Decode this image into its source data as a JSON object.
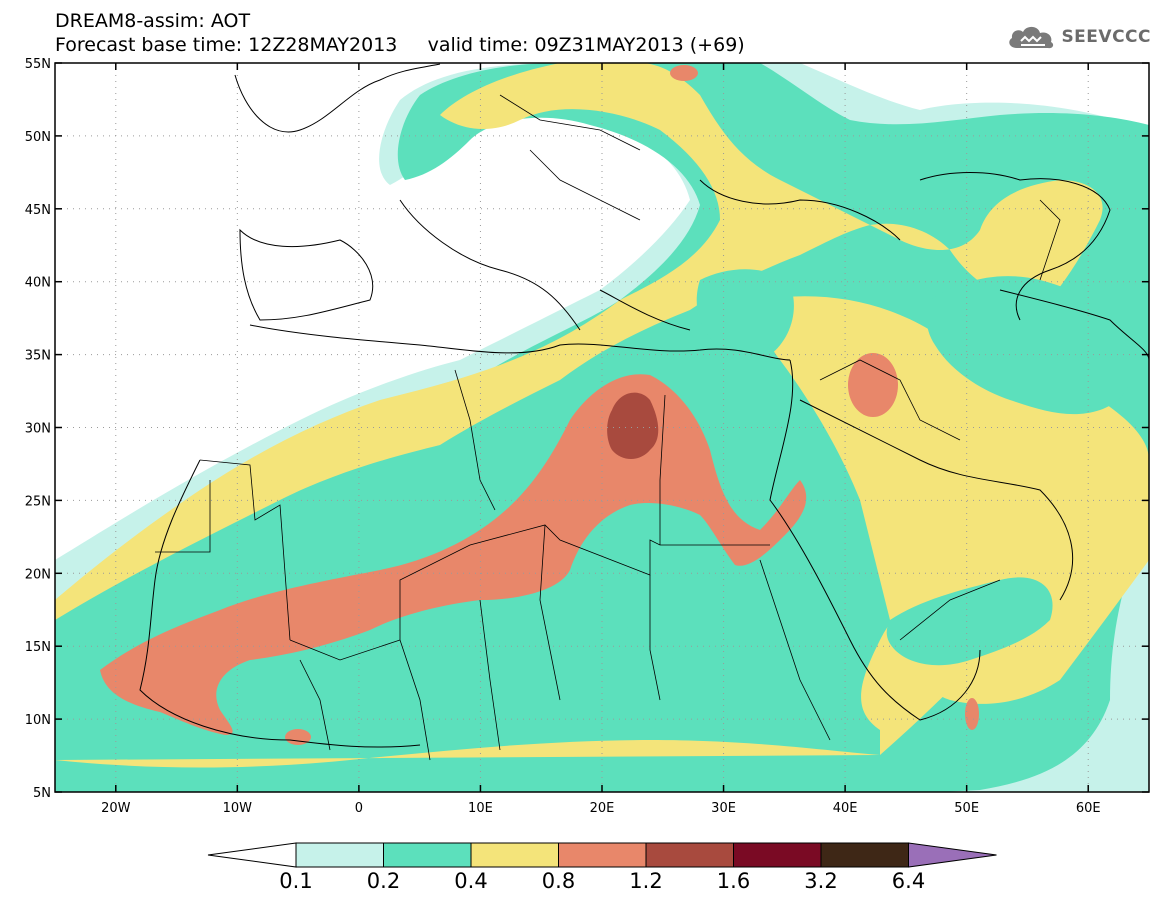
{
  "header": {
    "line1": "DREAM8-assim: AOT",
    "line2": "Forecast base time: 12Z28MAY2013     valid time: 09Z31MAY2013 (+69)"
  },
  "logo": {
    "text": "SEEVCCC",
    "icon": "cloud-icon"
  },
  "map": {
    "title": "DREAM8-assim: AOT",
    "lon_range": [
      -25,
      65
    ],
    "lat_range": [
      5,
      55
    ],
    "lat_ticks": [
      {
        "value": 55,
        "label": "55N"
      },
      {
        "value": 50,
        "label": "50N"
      },
      {
        "value": 45,
        "label": "45N"
      },
      {
        "value": 40,
        "label": "40N"
      },
      {
        "value": 35,
        "label": "35N"
      },
      {
        "value": 30,
        "label": "30N"
      },
      {
        "value": 25,
        "label": "25N"
      },
      {
        "value": 20,
        "label": "20N"
      },
      {
        "value": 15,
        "label": "15N"
      },
      {
        "value": 10,
        "label": "10N"
      },
      {
        "value": 5,
        "label": "5N"
      }
    ],
    "lon_ticks": [
      {
        "value": -20,
        "label": "20W"
      },
      {
        "value": -10,
        "label": "10W"
      },
      {
        "value": 0,
        "label": "0"
      },
      {
        "value": 10,
        "label": "10E"
      },
      {
        "value": 20,
        "label": "20E"
      },
      {
        "value": 30,
        "label": "30E"
      },
      {
        "value": 40,
        "label": "40E"
      },
      {
        "value": 50,
        "label": "50E"
      },
      {
        "value": 60,
        "label": "60E"
      }
    ],
    "grid": true,
    "colors": {
      "c01": "#c6f2ea",
      "c02": "#5ce0bc",
      "c04": "#f4e47a",
      "c08": "#e8876a",
      "c12": "#a84a3e",
      "c16": "#7a0a24",
      "c32": "#3e2716",
      "c64": "#9a6fb8"
    }
  },
  "colorbar": {
    "labels": [
      "0.1",
      "0.2",
      "0.4",
      "0.8",
      "1.2",
      "1.6",
      "3.2",
      "6.4"
    ],
    "bins": [
      {
        "color": "#c6f2ea"
      },
      {
        "color": "#5ce0bc"
      },
      {
        "color": "#f4e47a"
      },
      {
        "color": "#e8876a"
      },
      {
        "color": "#a84a3e"
      },
      {
        "color": "#7a0a24"
      },
      {
        "color": "#3e2716"
      }
    ],
    "under_color": "#ffffff",
    "over_color": "#9a6fb8"
  }
}
